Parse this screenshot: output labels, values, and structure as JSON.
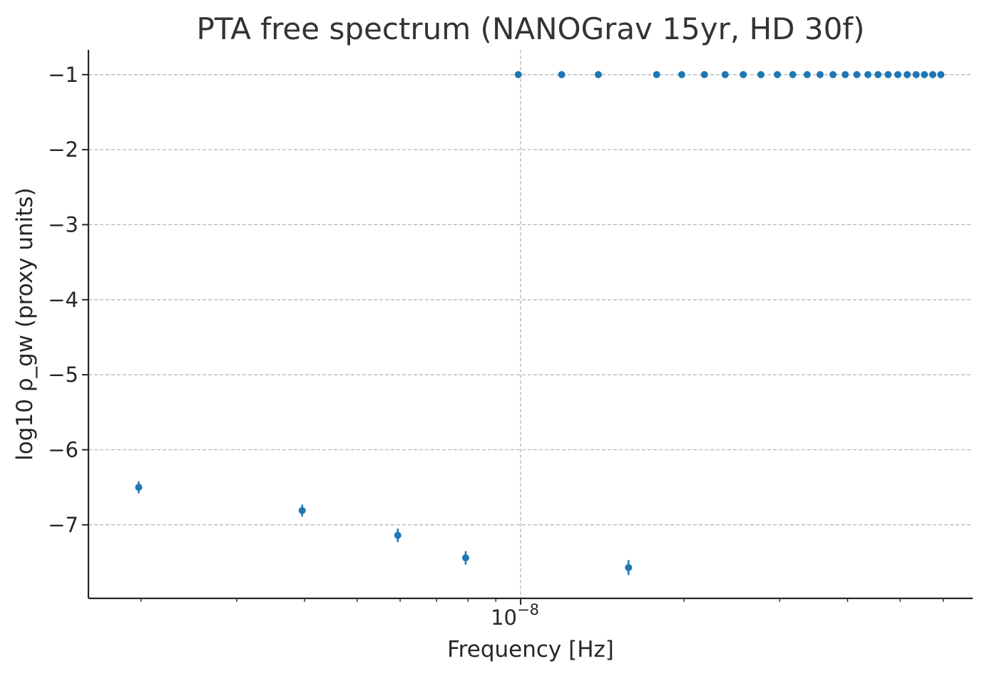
{
  "chart_data": {
    "type": "scatter",
    "title": "PTA free spectrum (NANOGrav 15yr, HD 30f)",
    "xlabel": "Frequency [Hz]",
    "ylabel": "log10 ρ_gw (proxy units)",
    "x_scale": "log",
    "xlim": [
      1.6e-09,
      6.8e-08
    ],
    "ylim": [
      -7.98,
      -0.67
    ],
    "x_ticks": [
      {
        "value": 1e-08,
        "label": "10−8"
      }
    ],
    "y_ticks": [
      {
        "value": -1,
        "label": "−1"
      },
      {
        "value": -2,
        "label": "−2"
      },
      {
        "value": -3,
        "label": "−3"
      },
      {
        "value": -4,
        "label": "−4"
      },
      {
        "value": -5,
        "label": "−5"
      },
      {
        "value": -6,
        "label": "−6"
      },
      {
        "value": -7,
        "label": "−7"
      }
    ],
    "grid": true,
    "color": "#1f77b4",
    "series": [
      {
        "x": [
          1.98e-09,
          3.96e-09,
          5.94e-09,
          7.92e-09,
          9.9e-09,
          1.19e-08,
          1.39e-08,
          1.58e-08,
          1.78e-08,
          1.98e-08,
          2.18e-08,
          2.38e-08,
          2.57e-08,
          2.77e-08,
          2.97e-08,
          3.17e-08,
          3.37e-08,
          3.56e-08,
          3.76e-08,
          3.96e-08,
          4.16e-08,
          4.36e-08,
          4.55e-08,
          4.75e-08,
          4.95e-08,
          5.15e-08,
          5.35e-08,
          5.54e-08,
          5.74e-08,
          5.94e-08
        ],
        "y": [
          -6.5,
          -6.81,
          -7.14,
          -7.44,
          -1.0,
          -1.0,
          -1.0,
          -7.57,
          -1.0,
          -1.0,
          -1.0,
          -1.0,
          -1.0,
          -1.0,
          -1.0,
          -1.0,
          -1.0,
          -1.0,
          -1.0,
          -1.0,
          -1.0,
          -1.0,
          -1.0,
          -1.0,
          -1.0,
          -1.0,
          -1.0,
          -1.0,
          -1.0,
          -1.0
        ],
        "yerr": [
          0.08,
          0.08,
          0.09,
          0.09,
          0,
          0,
          0,
          0.1,
          0,
          0,
          0,
          0,
          0,
          0,
          0,
          0,
          0,
          0,
          0,
          0,
          0,
          0,
          0,
          0,
          0,
          0,
          0,
          0,
          0,
          0
        ]
      }
    ]
  }
}
